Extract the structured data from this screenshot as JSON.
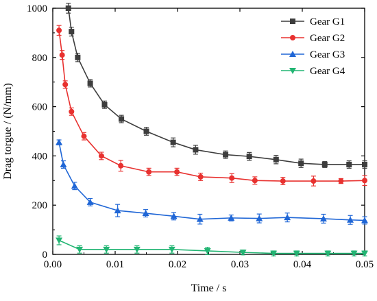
{
  "chart_data": {
    "type": "line",
    "title": "",
    "xlabel": "Time / s",
    "ylabel": "Drag torgue / (N/mm)",
    "xlim": [
      0,
      0.05
    ],
    "ylim": [
      0,
      1000
    ],
    "xticks": [
      0.0,
      0.01,
      0.02,
      0.03,
      0.04,
      0.05
    ],
    "xtick_labels": [
      "0.00",
      "0.01",
      "0.02",
      "0.03",
      "0.04",
      "0.05"
    ],
    "yticks": [
      0,
      200,
      400,
      600,
      800,
      1000
    ],
    "ytick_labels": [
      "0",
      "200",
      "400",
      "600",
      "800",
      "1000"
    ],
    "grid": false,
    "legend_position": "top-right",
    "series": [
      {
        "name": "Gear G1",
        "color": "#3d3d3d",
        "marker": "square",
        "x": [
          0.0025,
          0.003,
          0.004,
          0.006,
          0.0083,
          0.011,
          0.015,
          0.0193,
          0.0229,
          0.0277,
          0.0315,
          0.0358,
          0.0398,
          0.0436,
          0.0475,
          0.05
        ],
        "y": [
          1000,
          905,
          800,
          695,
          608,
          550,
          500,
          455,
          425,
          405,
          398,
          385,
          370,
          365,
          365,
          365
        ],
        "err": [
          20,
          18,
          17,
          15,
          15,
          15,
          16,
          18,
          18,
          15,
          16,
          17,
          17,
          12,
          15,
          15
        ]
      },
      {
        "name": "Gear G2",
        "color": "#e8312f",
        "marker": "circle",
        "x": [
          0.001,
          0.0015,
          0.002,
          0.003,
          0.005,
          0.0078,
          0.0109,
          0.0154,
          0.0199,
          0.0237,
          0.0287,
          0.0324,
          0.0369,
          0.0418,
          0.0462,
          0.05
        ],
        "y": [
          910,
          810,
          690,
          580,
          480,
          400,
          360,
          335,
          335,
          315,
          310,
          300,
          298,
          298,
          298,
          300
        ],
        "err": [
          20,
          18,
          15,
          15,
          15,
          15,
          22,
          15,
          15,
          15,
          18,
          15,
          15,
          20,
          10,
          20
        ]
      },
      {
        "name": "Gear G3",
        "color": "#1f66d6",
        "marker": "triangle-up",
        "x": [
          0.001,
          0.0017,
          0.0035,
          0.006,
          0.0104,
          0.0149,
          0.0194,
          0.0236,
          0.0286,
          0.0331,
          0.0376,
          0.0434,
          0.0477,
          0.05
        ],
        "y": [
          455,
          365,
          278,
          212,
          178,
          167,
          155,
          143,
          148,
          146,
          150,
          145,
          140,
          138
        ],
        "err": [
          10,
          15,
          15,
          15,
          25,
          15,
          15,
          20,
          12,
          18,
          18,
          18,
          18,
          15
        ]
      },
      {
        "name": "Gear G4",
        "color": "#22b573",
        "marker": "triangle-down",
        "x": [
          0.001,
          0.0043,
          0.0086,
          0.0135,
          0.0191,
          0.0248,
          0.0305,
          0.0354,
          0.0391,
          0.0441,
          0.0483,
          0.05
        ],
        "y": [
          57,
          20,
          20,
          20,
          20,
          14,
          8,
          4,
          4,
          4,
          4,
          4
        ],
        "err": [
          18,
          15,
          15,
          15,
          15,
          15,
          10,
          10,
          10,
          10,
          10,
          10
        ]
      }
    ]
  }
}
